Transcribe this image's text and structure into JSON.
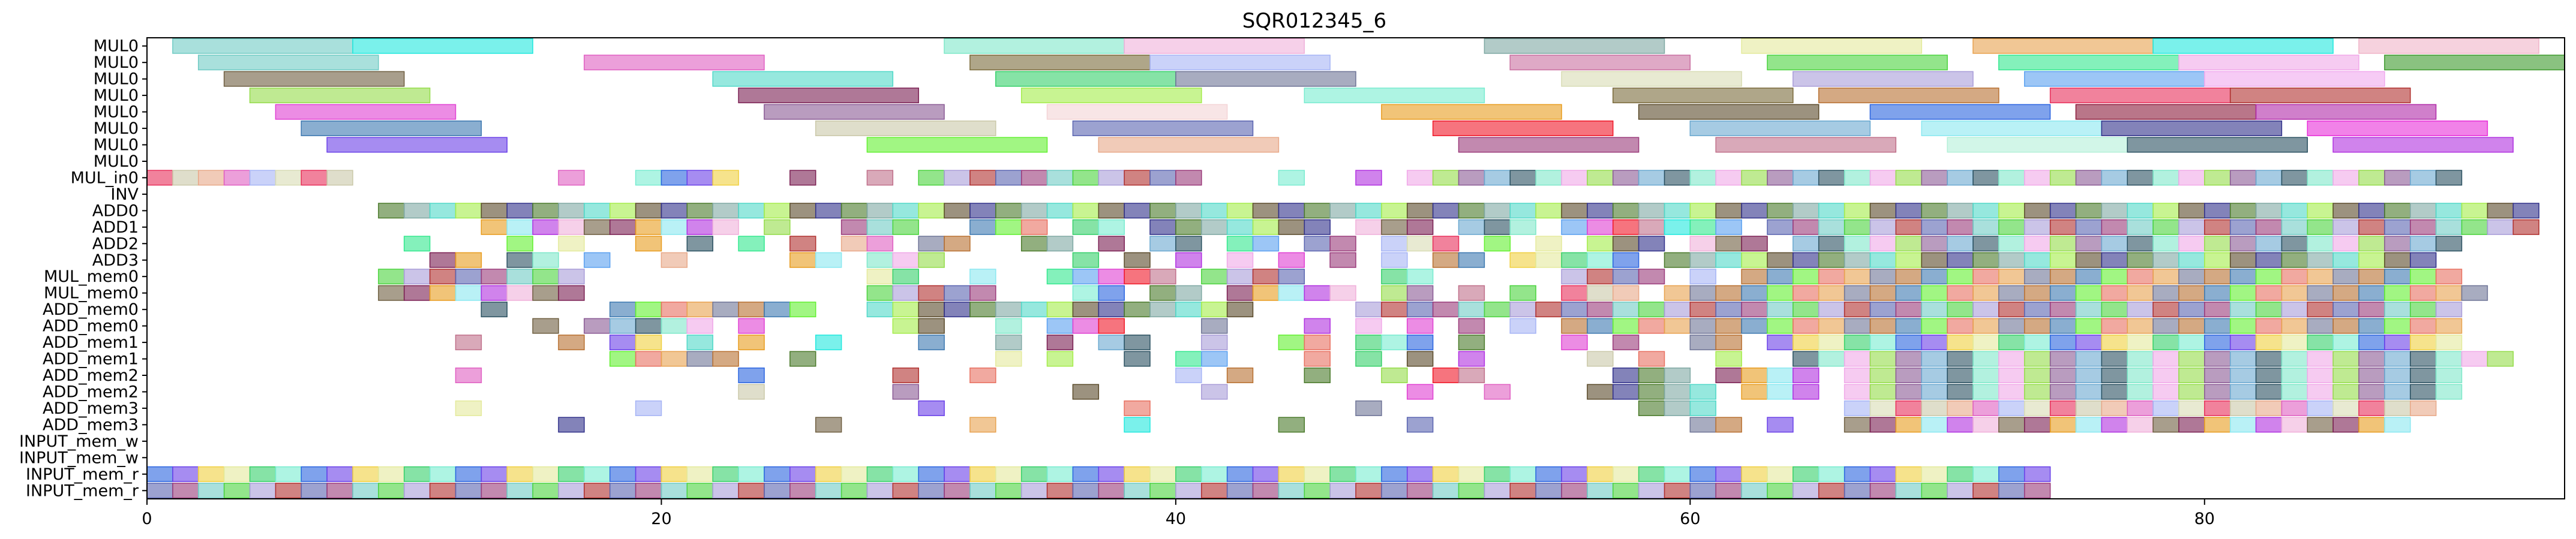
{
  "chart_data": {
    "type": "gantt",
    "title": "SQR012345_6",
    "xlim": [
      0,
      94
    ],
    "x_ticks": [
      0,
      20,
      40,
      60,
      80
    ],
    "x_tick_labels": [
      "0",
      "20",
      "40",
      "60",
      "80"
    ],
    "rows": [
      "MUL0",
      "MUL0",
      "MUL0",
      "MUL0",
      "MUL0",
      "MUL0",
      "MUL0",
      "MUL0",
      "MUL_in0",
      "INV",
      "ADD0",
      "ADD1",
      "ADD2",
      "ADD3",
      "MUL_mem0",
      "MUL_mem0",
      "ADD_mem0",
      "ADD_mem0",
      "ADD_mem1",
      "ADD_mem1",
      "ADD_mem2",
      "ADD_mem2",
      "ADD_mem3",
      "ADD_mem3",
      "INPUT_mem_w",
      "INPUT_mem_w",
      "INPUT_mem_r",
      "INPUT_mem_r"
    ],
    "long_bars": [
      {
        "row": 0,
        "start": 1,
        "end": 8,
        "color": "#6fcbc4"
      },
      {
        "row": 0,
        "start": 8,
        "end": 15,
        "color": "#22e8de"
      },
      {
        "row": 0,
        "start": 31,
        "end": 38,
        "color": "#7ee8c9"
      },
      {
        "row": 0,
        "start": 38,
        "end": 45,
        "color": "#f0b0da"
      },
      {
        "row": 0,
        "start": 52,
        "end": 59,
        "color": "#7fa8a3"
      },
      {
        "row": 0,
        "start": 62,
        "end": 69,
        "color": "#e4ea9c"
      },
      {
        "row": 0,
        "start": 71,
        "end": 78,
        "color": "#e8a24f"
      },
      {
        "row": 0,
        "start": 78,
        "end": 85,
        "color": "#22e8de"
      },
      {
        "row": 0,
        "start": 86,
        "end": 93,
        "color": "#f0b4c8"
      },
      {
        "row": 1,
        "start": 2,
        "end": 9,
        "color": "#6fcbc4"
      },
      {
        "row": 1,
        "start": 17,
        "end": 24,
        "color": "#e05fc2"
      },
      {
        "row": 1,
        "start": 32,
        "end": 39,
        "color": "#7a6a3a"
      },
      {
        "row": 1,
        "start": 39,
        "end": 46,
        "color": "#a6b4f5"
      },
      {
        "row": 1,
        "start": 53,
        "end": 60,
        "color": "#c96fa0"
      },
      {
        "row": 1,
        "start": 63,
        "end": 70,
        "color": "#4bd33e"
      },
      {
        "row": 1,
        "start": 72,
        "end": 79,
        "color": "#32e88e"
      },
      {
        "row": 1,
        "start": 79,
        "end": 86,
        "color": "#f0a8e8"
      },
      {
        "row": 1,
        "start": 87,
        "end": 94,
        "color": "#3c9a2c"
      },
      {
        "row": 2,
        "start": 3,
        "end": 10,
        "color": "#6e5e40"
      },
      {
        "row": 2,
        "start": 22,
        "end": 29,
        "color": "#50d8c8"
      },
      {
        "row": 2,
        "start": 33,
        "end": 40,
        "color": "#35d06a"
      },
      {
        "row": 2,
        "start": 40,
        "end": 47,
        "color": "#6e7496"
      },
      {
        "row": 2,
        "start": 55,
        "end": 62,
        "color": "#d8dcb4"
      },
      {
        "row": 2,
        "start": 64,
        "end": 71,
        "color": "#a89cd8"
      },
      {
        "row": 2,
        "start": 73,
        "end": 80,
        "color": "#5aa0f0"
      },
      {
        "row": 2,
        "start": 80,
        "end": 87,
        "color": "#f0a8ee"
      },
      {
        "row": 3,
        "start": 4,
        "end": 11,
        "color": "#94dc4a"
      },
      {
        "row": 3,
        "start": 23,
        "end": 30,
        "color": "#7a1e52"
      },
      {
        "row": 3,
        "start": 34,
        "end": 41,
        "color": "#a4ec4a"
      },
      {
        "row": 3,
        "start": 45,
        "end": 52,
        "color": "#78ecd0"
      },
      {
        "row": 3,
        "start": 57,
        "end": 64,
        "color": "#7a6a3a"
      },
      {
        "row": 3,
        "start": 65,
        "end": 72,
        "color": "#b87030"
      },
      {
        "row": 3,
        "start": 74,
        "end": 81,
        "color": "#e82e5a"
      },
      {
        "row": 3,
        "start": 81,
        "end": 88,
        "color": "#b0302e"
      },
      {
        "row": 4,
        "start": 5,
        "end": 12,
        "color": "#e040d2"
      },
      {
        "row": 4,
        "start": 24,
        "end": 31,
        "color": "#8a5a94"
      },
      {
        "row": 4,
        "start": 35,
        "end": 42,
        "color": "#f4d4d6"
      },
      {
        "row": 4,
        "start": 48,
        "end": 55,
        "color": "#e89c1e"
      },
      {
        "row": 4,
        "start": 58,
        "end": 65,
        "color": "#5a4a2a"
      },
      {
        "row": 4,
        "start": 67,
        "end": 74,
        "color": "#2a64e0"
      },
      {
        "row": 4,
        "start": 75,
        "end": 82,
        "color": "#8a1a3a"
      },
      {
        "row": 4,
        "start": 82,
        "end": 89,
        "color": "#b02aa8"
      },
      {
        "row": 5,
        "start": 6,
        "end": 13,
        "color": "#3c78b0"
      },
      {
        "row": 5,
        "start": 26,
        "end": 33,
        "color": "#cac8a8"
      },
      {
        "row": 5,
        "start": 36,
        "end": 43,
        "color": "#5a64b0"
      },
      {
        "row": 5,
        "start": 50,
        "end": 57,
        "color": "#f01828"
      },
      {
        "row": 5,
        "start": 60,
        "end": 67,
        "color": "#6aa8d0"
      },
      {
        "row": 5,
        "start": 69,
        "end": 76,
        "color": "#8ae8f0"
      },
      {
        "row": 5,
        "start": 76,
        "end": 83,
        "color": "#30308a"
      },
      {
        "row": 5,
        "start": 84,
        "end": 91,
        "color": "#e82ed8"
      },
      {
        "row": 6,
        "start": 7,
        "end": 14,
        "color": "#6a40e8"
      },
      {
        "row": 6,
        "start": 28,
        "end": 35,
        "color": "#62f030"
      },
      {
        "row": 6,
        "start": 37,
        "end": 44,
        "color": "#e8a888"
      },
      {
        "row": 6,
        "start": 51,
        "end": 58,
        "color": "#9a3a7a"
      },
      {
        "row": 6,
        "start": 61,
        "end": 68,
        "color": "#c0708a"
      },
      {
        "row": 6,
        "start": 70,
        "end": 77,
        "color": "#b4f0d8"
      },
      {
        "row": 6,
        "start": 77,
        "end": 84,
        "color": "#2a5060"
      },
      {
        "row": 6,
        "start": 85,
        "end": 92,
        "color": "#b030e0"
      }
    ],
    "palette": [
      "#e05fc2",
      "#6fcbc4",
      "#22e8de",
      "#7ee8c9",
      "#f0b0da",
      "#7fa8a3",
      "#e4ea9c",
      "#e8a24f",
      "#a6b4f5",
      "#4bd33e",
      "#32e88e",
      "#f0a8e8",
      "#6e5e40",
      "#50d8c8",
      "#35d06a",
      "#6e7496",
      "#d8dcb4",
      "#a89cd8",
      "#5aa0f0",
      "#94dc4a",
      "#7a1e52",
      "#a4ec4a",
      "#78ecd0",
      "#b87030",
      "#e82e5a",
      "#b0302e",
      "#e040d2",
      "#8a5a94",
      "#e89c1e",
      "#5a4a2a",
      "#2a64e0",
      "#3c78b0",
      "#cac8a8",
      "#5a64b0",
      "#f01828",
      "#6aa8d0",
      "#8ae8f0",
      "#30308a",
      "#6a40e8",
      "#62f030",
      "#e8a888",
      "#9a3a7a",
      "#c0708a",
      "#2a5060",
      "#b030e0",
      "#4a7a2a",
      "#f0d040",
      "#e87060"
    ],
    "short_rows": {
      "8": [
        0,
        1,
        2,
        3,
        4,
        5,
        6,
        7,
        16,
        19,
        20,
        21,
        22,
        25,
        28,
        30,
        31,
        32,
        33,
        34,
        35,
        36,
        37,
        38,
        39,
        40,
        44,
        47,
        49,
        50,
        51,
        52,
        53,
        54,
        55,
        56,
        57,
        58,
        59,
        60,
        61,
        62,
        63,
        64,
        65,
        66,
        67,
        68,
        69,
        70,
        71,
        72,
        73,
        74,
        75,
        76,
        77,
        78,
        79,
        80,
        81,
        82,
        83,
        84,
        85,
        86,
        87,
        88,
        89
      ],
      "10": [
        9,
        10,
        11,
        12,
        13,
        14,
        15,
        16,
        17,
        18,
        19,
        20,
        21,
        22,
        23,
        24,
        25,
        26,
        27,
        28,
        29,
        30,
        31,
        32,
        33,
        34,
        35,
        36,
        37,
        38,
        39,
        40,
        41,
        42,
        43,
        44,
        45,
        46,
        47,
        48,
        49,
        50,
        51,
        52,
        53,
        54,
        55,
        56,
        57,
        58,
        59,
        60,
        61,
        62,
        63,
        64,
        65,
        66,
        67,
        68,
        69,
        70,
        71,
        72,
        73,
        74,
        75,
        76,
        77,
        78,
        79,
        80,
        81,
        82,
        83,
        84,
        85,
        86,
        87,
        88,
        89,
        90,
        91,
        92
      ],
      "11": [
        13,
        14,
        15,
        16,
        17,
        18,
        19,
        20,
        21,
        22,
        24,
        27,
        28,
        29,
        32,
        33,
        34,
        36,
        37,
        39,
        40,
        41,
        42,
        43,
        44,
        45,
        47,
        48,
        49,
        51,
        52,
        53,
        55,
        56,
        57,
        58,
        59,
        60,
        61,
        63,
        64,
        65,
        66,
        67,
        68,
        69,
        70,
        71,
        72,
        73,
        74,
        75,
        76,
        77,
        78,
        79,
        80,
        81,
        82,
        83,
        84,
        85,
        86,
        87,
        88,
        89,
        90,
        91,
        92
      ],
      "12": [
        10,
        14,
        16,
        19,
        21,
        23,
        25,
        27,
        28,
        30,
        31,
        34,
        35,
        37,
        39,
        40,
        42,
        43,
        45,
        46,
        48,
        49,
        50,
        52,
        54,
        56,
        57,
        58,
        60,
        61,
        62,
        64,
        65,
        66,
        67,
        68,
        69,
        70,
        71,
        72,
        73,
        74,
        75,
        76,
        77,
        78,
        79,
        80,
        81,
        82,
        83,
        84,
        85,
        86,
        87,
        88,
        89
      ],
      "13": [
        11,
        12,
        14,
        15,
        17,
        20,
        25,
        26,
        28,
        29,
        30,
        36,
        38,
        40,
        42,
        44,
        46,
        48,
        50,
        51,
        53,
        54,
        55,
        56,
        57,
        59,
        60,
        61,
        62,
        63,
        64,
        65,
        66,
        67,
        68,
        69,
        70,
        71,
        72,
        73,
        74,
        75,
        76,
        77,
        78,
        79,
        80,
        81,
        82,
        83,
        84,
        85,
        86,
        87,
        88
      ],
      "14": [
        9,
        10,
        11,
        12,
        13,
        14,
        15,
        16,
        28,
        29,
        32,
        35,
        36,
        37,
        38,
        39,
        41,
        42,
        43,
        44,
        48,
        49,
        55,
        56,
        57,
        58,
        60,
        62,
        63,
        64,
        65,
        66,
        67,
        68,
        69,
        70,
        71,
        72,
        73,
        74,
        75,
        76,
        77,
        78,
        79,
        80,
        81,
        82,
        83,
        84,
        85,
        86,
        87,
        88,
        89
      ],
      "15": [
        9,
        10,
        11,
        12,
        13,
        14,
        15,
        16,
        28,
        29,
        30,
        31,
        32,
        36,
        37,
        39,
        40,
        42,
        43,
        44,
        45,
        46,
        48,
        49,
        51,
        53,
        55,
        56,
        57,
        59,
        60,
        61,
        62,
        63,
        64,
        65,
        66,
        67,
        68,
        69,
        70,
        71,
        72,
        73,
        74,
        75,
        76,
        77,
        78,
        79,
        80,
        81,
        82,
        83,
        84,
        85,
        86,
        87,
        88,
        89,
        90
      ],
      "16": [
        13,
        18,
        19,
        20,
        21,
        22,
        23,
        24,
        25,
        28,
        29,
        30,
        31,
        32,
        33,
        34,
        35,
        36,
        37,
        38,
        39,
        40,
        41,
        42,
        47,
        48,
        49,
        50,
        51,
        52,
        53,
        54,
        55,
        56,
        57,
        58,
        59,
        60,
        61,
        62,
        63,
        64,
        65,
        66,
        67,
        68,
        69,
        70,
        71,
        72,
        73,
        74,
        75,
        76,
        77,
        78,
        79,
        80,
        81,
        82,
        83,
        84,
        85,
        86,
        87,
        88,
        89
      ],
      "17": [
        15,
        17,
        18,
        19,
        20,
        21,
        23,
        29,
        30,
        33,
        35,
        36,
        37,
        41,
        45,
        47,
        49,
        51,
        53,
        55,
        56,
        57,
        58,
        59,
        60,
        61,
        62,
        63,
        64,
        65,
        66,
        67,
        68,
        69,
        70,
        71,
        72,
        73,
        74,
        75,
        76,
        77,
        78,
        79,
        80,
        81,
        82,
        83,
        84,
        85,
        86,
        87,
        88,
        89
      ],
      "18": [
        12,
        16,
        18,
        19,
        21,
        23,
        26,
        30,
        33,
        35,
        37,
        38,
        41,
        44,
        45,
        47,
        48,
        49,
        51,
        55,
        57,
        60,
        61,
        63,
        64,
        65,
        66,
        67,
        68,
        69,
        70,
        71,
        72,
        73,
        74,
        75,
        76,
        77,
        78,
        79,
        80,
        81,
        82,
        83,
        84,
        85,
        86,
        87,
        88,
        89
      ],
      "19": [
        18,
        19,
        20,
        21,
        22,
        25,
        33,
        35,
        38,
        40,
        41,
        45,
        47,
        49,
        51,
        56,
        58,
        61,
        64,
        65,
        66,
        67,
        68,
        69,
        70,
        71,
        72,
        73,
        74,
        75,
        76,
        77,
        78,
        79,
        80,
        81,
        82,
        83,
        84,
        85,
        86,
        87,
        88,
        89,
        90,
        91
      ],
      "20": [
        12,
        23,
        29,
        32,
        40,
        42,
        45,
        48,
        50,
        51,
        57,
        58,
        59,
        61,
        62,
        63,
        64,
        66,
        67,
        68,
        69,
        70,
        71,
        72,
        73,
        74,
        75,
        76,
        77,
        78,
        79,
        80,
        81,
        82,
        83,
        84,
        85,
        86,
        87,
        88,
        89
      ],
      "21": [
        23,
        29,
        36,
        41,
        49,
        52,
        56,
        57,
        58,
        59,
        60,
        62,
        63,
        64,
        66,
        67,
        68,
        69,
        70,
        71,
        72,
        73,
        74,
        75,
        76,
        77,
        78,
        79,
        80,
        81,
        82,
        83,
        84,
        85,
        86,
        87,
        88,
        89
      ],
      "22": [
        12,
        19,
        30,
        38,
        47,
        58,
        59,
        60,
        66,
        67,
        68,
        69,
        70,
        71,
        72,
        73,
        74,
        75,
        76,
        77,
        78,
        79,
        80,
        81,
        82,
        83,
        84,
        85,
        86,
        87,
        88
      ],
      "23": [
        16,
        26,
        32,
        38,
        44,
        49,
        60,
        61,
        63,
        66,
        67,
        68,
        69,
        70,
        71,
        72,
        73,
        74,
        75,
        76,
        77,
        78,
        79,
        80,
        81,
        82,
        83,
        84,
        85,
        86,
        87
      ],
      "26": [
        0,
        1,
        2,
        3,
        4,
        5,
        6,
        7,
        8,
        9,
        10,
        11,
        12,
        13,
        14,
        15,
        16,
        17,
        18,
        19,
        20,
        21,
        22,
        23,
        24,
        25,
        26,
        27,
        28,
        29,
        30,
        31,
        32,
        33,
        34,
        35,
        36,
        37,
        38,
        39,
        40,
        41,
        42,
        43,
        44,
        45,
        46,
        47,
        48,
        49,
        50,
        51,
        52,
        53,
        54,
        55,
        56,
        57,
        58,
        59,
        60,
        61,
        62,
        63,
        64,
        65,
        66,
        67,
        68,
        69,
        70,
        71,
        72,
        73
      ],
      "27": [
        0,
        1,
        2,
        3,
        4,
        5,
        6,
        7,
        8,
        9,
        10,
        11,
        12,
        13,
        14,
        15,
        16,
        17,
        18,
        19,
        20,
        21,
        22,
        23,
        24,
        25,
        26,
        27,
        28,
        29,
        30,
        31,
        32,
        33,
        34,
        35,
        36,
        37,
        38,
        39,
        40,
        41,
        42,
        43,
        44,
        45,
        46,
        47,
        48,
        49,
        50,
        51,
        52,
        53,
        54,
        55,
        56,
        57,
        58,
        59,
        60,
        61,
        62,
        63,
        64,
        65,
        66,
        67,
        68,
        69,
        70,
        71,
        72,
        73
      ]
    }
  }
}
